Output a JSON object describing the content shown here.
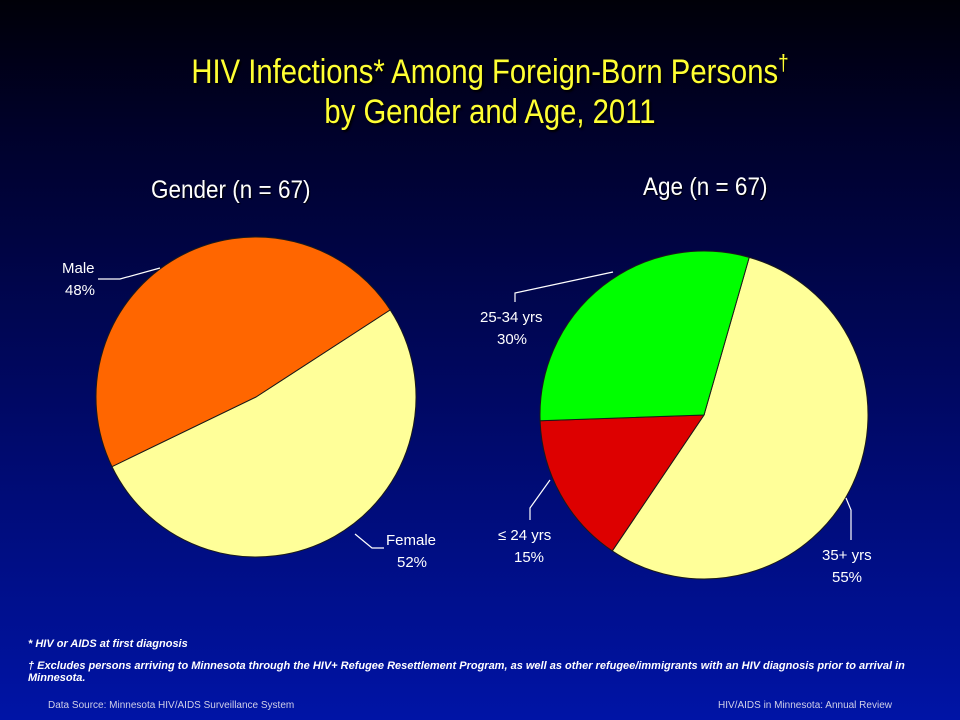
{
  "title": {
    "line1": "HIV Infections* Among Foreign-Born Persons",
    "line1_mark": "†",
    "line2": "by Gender and Age, 2011"
  },
  "chart_data": [
    {
      "type": "pie",
      "title": "Gender (n = 67)",
      "slices": [
        {
          "label": "Male",
          "pct_text": "48%",
          "value": 48,
          "color": "#ff6600"
        },
        {
          "label": "Female",
          "pct_text": "52%",
          "value": 52,
          "color": "#ffff99"
        }
      ]
    },
    {
      "type": "pie",
      "title": "Age (n = 67)",
      "slices": [
        {
          "label": "25-34 yrs",
          "pct_text": "30%",
          "value": 30,
          "color": "#00ff00"
        },
        {
          "label": "≤ 24 yrs",
          "pct_text": "15%",
          "value": 15,
          "color": "#dd0000"
        },
        {
          "label": "35+ yrs",
          "pct_text": "55%",
          "value": 55,
          "color": "#ffff99"
        }
      ]
    }
  ],
  "footnotes": {
    "asterisk": "* HIV or AIDS at first diagnosis",
    "dagger": "† Excludes persons arriving to Minnesota through the HIV+ Refugee Resettlement Program, as well as other refugee/immigrants with an HIV diagnosis prior to arrival in Minnesota."
  },
  "source": {
    "left": "Data Source: Minnesota HIV/AIDS Surveillance System",
    "right": "HIV/AIDS in Minnesota: Annual Review"
  }
}
